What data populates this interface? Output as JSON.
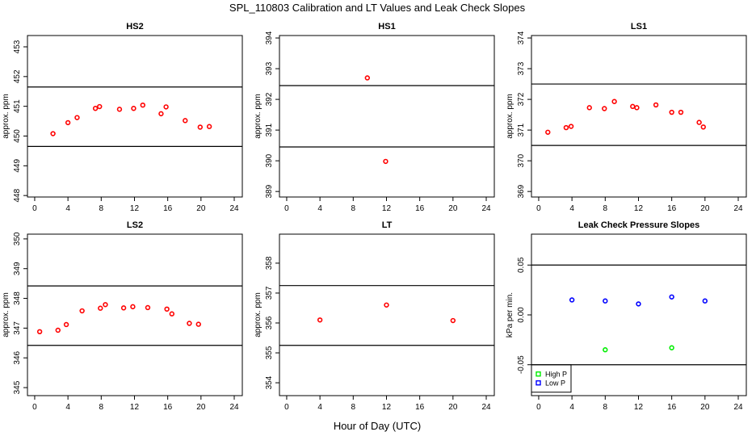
{
  "title": "SPL_110803  Calibration and LT Values and Leak Check Slopes",
  "xlabel": "Hour of Day (UTC)",
  "chart_data": [
    {
      "type": "scatter",
      "title": "HS2",
      "ylabel": "approx. ppm",
      "xlim": [
        -0.87,
        24.97
      ],
      "ylim": [
        447.95,
        453.38
      ],
      "xticks": [
        0,
        4,
        8,
        12,
        16,
        20,
        24
      ],
      "yticks": [
        448,
        449,
        450,
        451,
        452,
        453
      ],
      "hlines": [
        451.65,
        449.65
      ],
      "series": [
        {
          "name": "HS2",
          "color": "#ff0000",
          "x": [
            2.2,
            4,
            5.1,
            7.3,
            7.8,
            10.2,
            11.9,
            13,
            15.2,
            15.8,
            18.1,
            19.9,
            21
          ],
          "y": [
            450.08,
            450.45,
            450.62,
            450.93,
            450.99,
            450.9,
            450.93,
            451.04,
            450.75,
            450.98,
            450.52,
            450.3,
            450.32
          ]
        }
      ]
    },
    {
      "type": "scatter",
      "title": "HS1",
      "ylabel": "approx. ppm",
      "xlim": [
        -0.87,
        24.97
      ],
      "ylim": [
        388.82,
        394.08
      ],
      "xticks": [
        0,
        4,
        8,
        12,
        16,
        20,
        24
      ],
      "yticks": [
        389,
        390,
        391,
        392,
        393,
        394
      ],
      "hlines": [
        392.45,
        390.45
      ],
      "series": [
        {
          "name": "HS1",
          "color": "#ff0000",
          "x": [
            9.7,
            11.9
          ],
          "y": [
            392.7,
            389.98
          ]
        }
      ]
    },
    {
      "type": "scatter",
      "title": "LS1",
      "ylabel": "approx. ppm",
      "xlim": [
        -0.87,
        24.97
      ],
      "ylim": [
        368.82,
        374.08
      ],
      "xticks": [
        0,
        4,
        8,
        12,
        16,
        20,
        24
      ],
      "yticks": [
        369,
        370,
        371,
        372,
        373,
        374
      ],
      "hlines": [
        372.5,
        370.5
      ],
      "series": [
        {
          "name": "LS1",
          "color": "#ff0000",
          "x": [
            1.1,
            3.3,
            3.9,
            6.1,
            7.9,
            9.1,
            11.3,
            11.8,
            14.1,
            16,
            17.1,
            19.3,
            19.8
          ],
          "y": [
            370.93,
            371.08,
            371.12,
            371.73,
            371.7,
            371.93,
            371.77,
            371.73,
            371.82,
            371.58,
            371.58,
            371.25,
            371.1
          ]
        }
      ]
    },
    {
      "type": "scatter",
      "title": "LS2",
      "ylabel": "approx. ppm",
      "xlim": [
        -0.87,
        24.97
      ],
      "ylim": [
        344.73,
        350.16
      ],
      "xticks": [
        0,
        4,
        8,
        12,
        16,
        20,
        24
      ],
      "yticks": [
        345,
        346,
        347,
        348,
        349,
        350
      ],
      "hlines": [
        348.42,
        346.42
      ],
      "series": [
        {
          "name": "LS2",
          "color": "#ff0000",
          "x": [
            0.6,
            2.8,
            3.8,
            5.7,
            7.9,
            8.5,
            10.7,
            11.8,
            13.6,
            15.9,
            16.5,
            18.6,
            19.7
          ],
          "y": [
            346.88,
            346.93,
            347.12,
            347.58,
            347.67,
            347.79,
            347.68,
            347.72,
            347.69,
            347.64,
            347.48,
            347.16,
            347.13
          ]
        }
      ]
    },
    {
      "type": "scatter",
      "title": "LT",
      "ylabel": "approx. ppm",
      "xlim": [
        -0.87,
        24.97
      ],
      "ylim": [
        353.57,
        358.97
      ],
      "xticks": [
        0,
        4,
        8,
        12,
        16,
        20,
        24
      ],
      "yticks": [
        354,
        355,
        356,
        357,
        358
      ],
      "hlines": [
        357.25,
        355.25
      ],
      "series": [
        {
          "name": "LT",
          "color": "#ff0000",
          "x": [
            4,
            12,
            20
          ],
          "y": [
            356.1,
            356.6,
            356.08
          ]
        }
      ]
    },
    {
      "type": "scatter",
      "title": "Leak Check Pressure Slopes",
      "ylabel": "kPa per min.",
      "xlim": [
        -0.87,
        24.97
      ],
      "ylim": [
        -0.081,
        0.081
      ],
      "xticks": [
        0,
        4,
        8,
        12,
        16,
        20,
        24
      ],
      "yticks": [
        "-0.05",
        "0.00",
        "0.05"
      ],
      "hlines": [
        0.05,
        -0.05
      ],
      "legend": "bottom-left",
      "series": [
        {
          "name": "High P",
          "color": "#00ee00",
          "x": [
            8,
            16
          ],
          "y": [
            -0.035,
            -0.033
          ]
        },
        {
          "name": "Low P",
          "color": "#0000ff",
          "x": [
            4,
            8,
            12,
            16,
            20
          ],
          "y": [
            0.015,
            0.014,
            0.011,
            0.018,
            0.014
          ]
        }
      ]
    }
  ]
}
